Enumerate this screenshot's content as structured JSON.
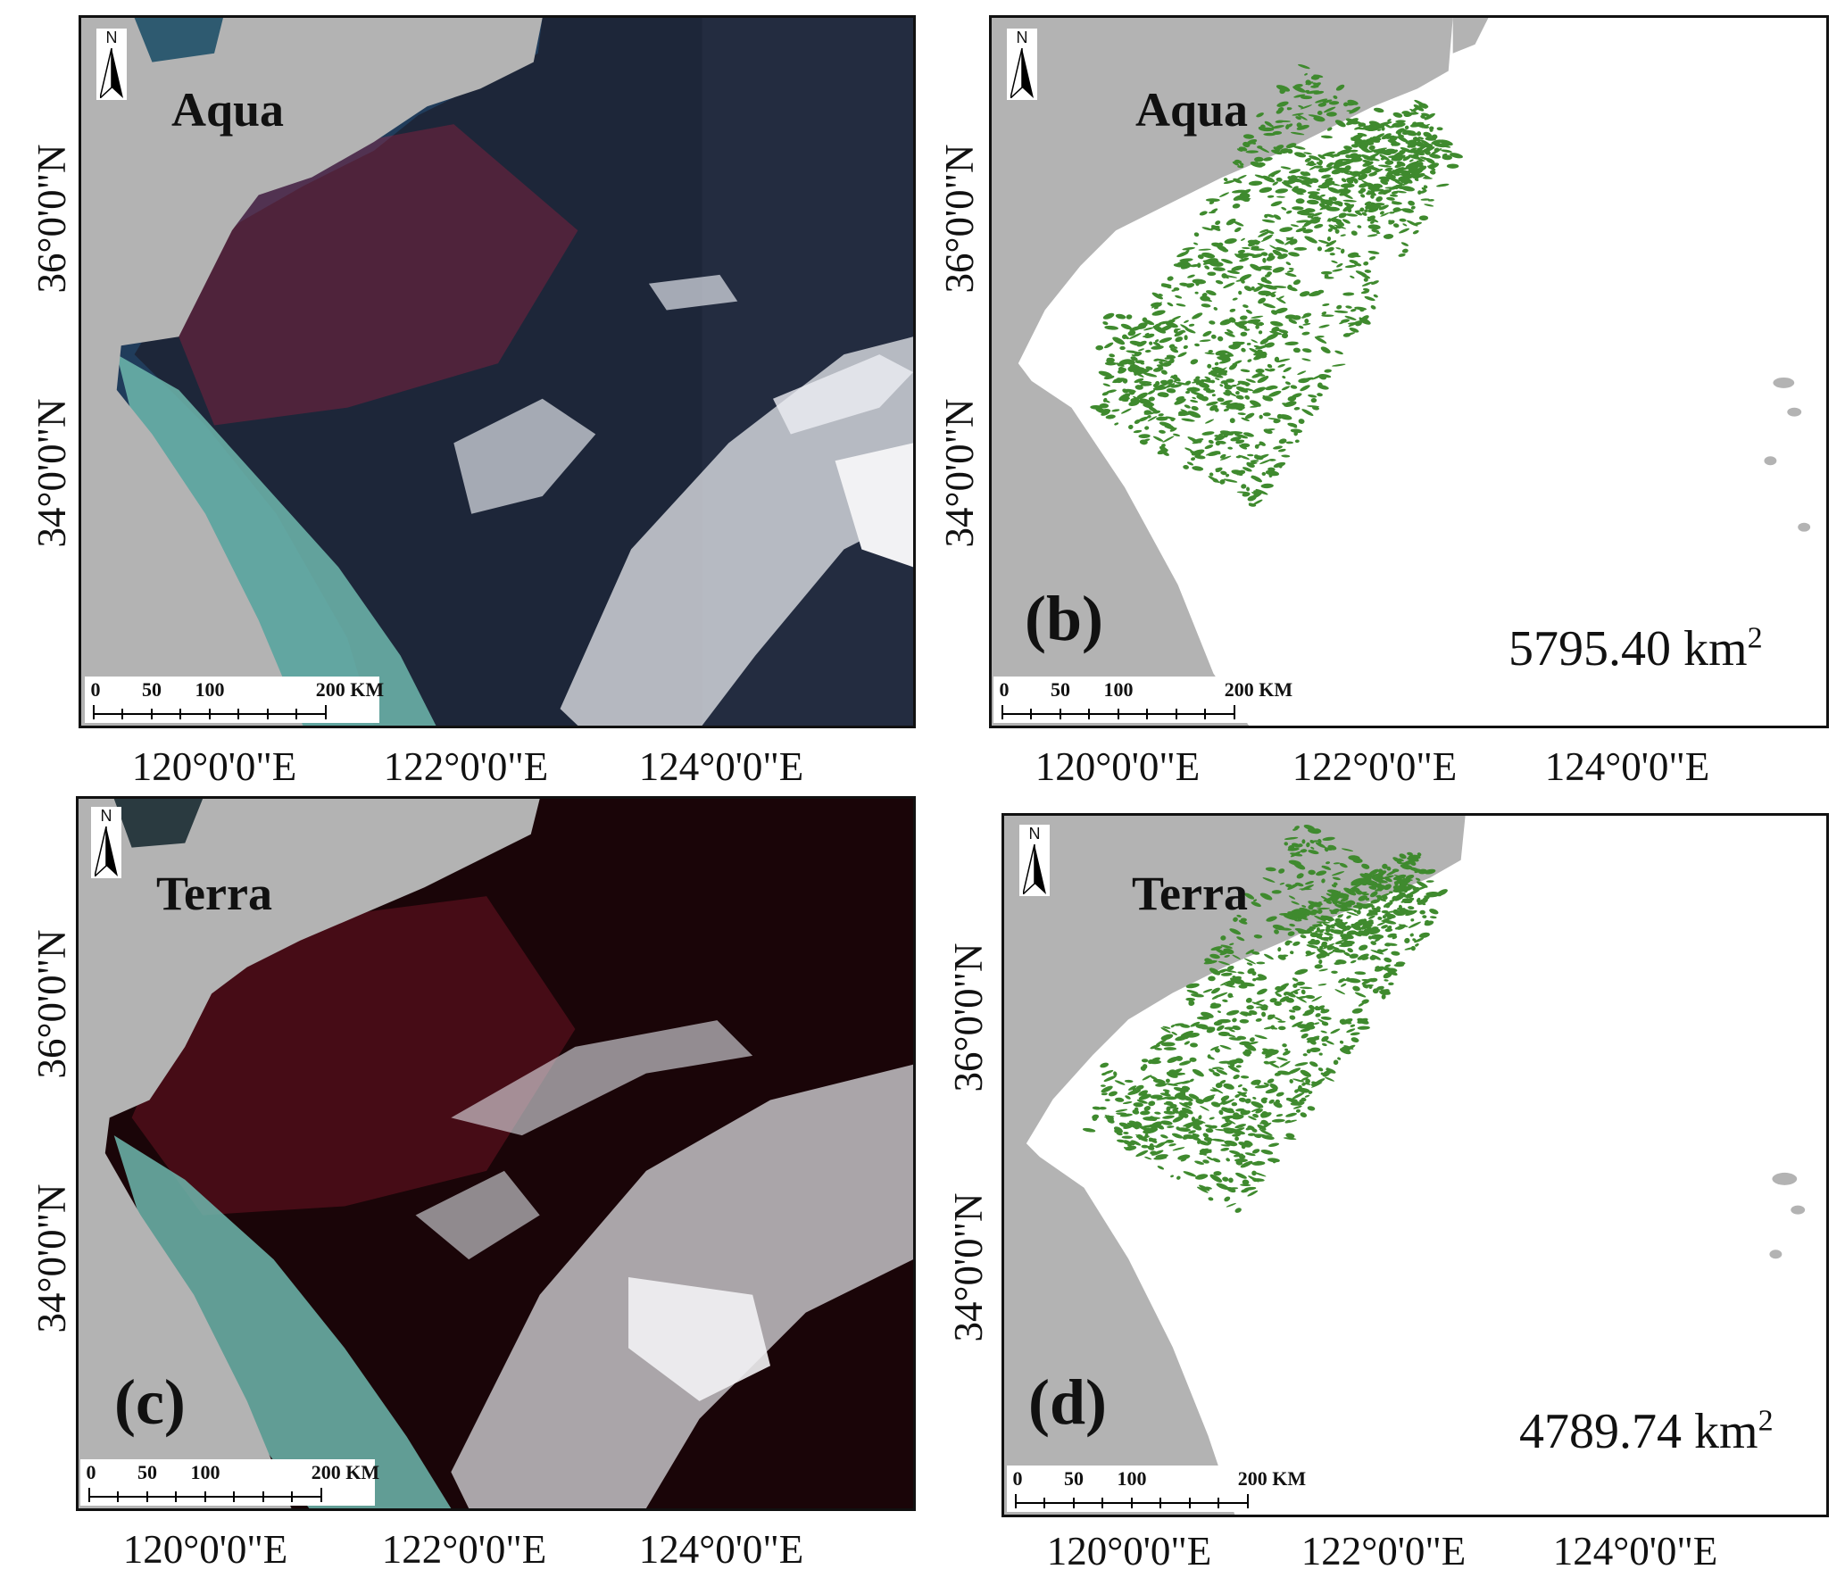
{
  "panels": {
    "a": {
      "satellite": "Aqua",
      "label": "",
      "area_value": "",
      "area_unit": "",
      "area_sup": ""
    },
    "b": {
      "satellite": "Aqua",
      "label": "(b)",
      "area_value": "5795.40",
      "area_unit": " km",
      "area_sup": "2"
    },
    "c": {
      "satellite": "Terra",
      "label": "(c)",
      "area_value": "",
      "area_unit": "",
      "area_sup": ""
    },
    "d": {
      "satellite": "Terra",
      "label": "(d)",
      "area_value": "4789.74",
      "area_unit": " km",
      "area_sup": "2"
    }
  },
  "axes": {
    "x_ticks": [
      "120°0'0\"E",
      "122°0'0\"E",
      "124°0'0\"E"
    ],
    "y_ticks": [
      "36°0'0\"N",
      "34°0'0\"N"
    ]
  },
  "north_arrow": {
    "letter": "N",
    "icon": "north-arrow-icon"
  },
  "scale_bar": {
    "labels": [
      "0",
      "50",
      "100",
      "200 KM"
    ]
  },
  "colors": {
    "land": "#b3b3b3",
    "algae": "#3f8a2e",
    "sea_dark": "#1c2538",
    "sea_dark_terra": "#1a0508",
    "coastal_turquoise": "#6fb8ae",
    "bloom_red": "#b02040",
    "cloud": "#f2f2f4"
  }
}
